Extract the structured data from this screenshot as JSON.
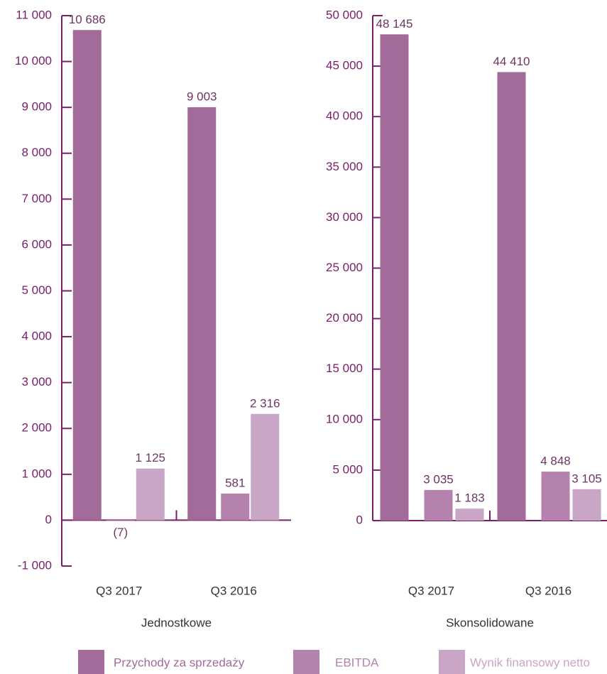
{
  "chart_data": [
    {
      "type": "bar",
      "title": "Jednostkowe",
      "categories": [
        "Q3 2017",
        "Q3 2016"
      ],
      "series": [
        {
          "name": "Przychody za sprzedaży",
          "color": "#a26b9a",
          "values": [
            10686,
            9003
          ],
          "value_labels": [
            "10 686",
            "9 003"
          ]
        },
        {
          "name": "EBITDA",
          "color": "#b482ad",
          "values": [
            -7,
            581
          ],
          "value_labels": [
            "(7)",
            "581"
          ]
        },
        {
          "name": "Wynik finansowy netto",
          "color": "#c9a5c6",
          "values": [
            1125,
            2316
          ],
          "value_labels": [
            "1 125",
            "2 316"
          ]
        }
      ],
      "ylim": [
        -1000,
        11000
      ],
      "yticks": [
        {
          "value": -1000,
          "label": "-1 000"
        },
        0,
        {
          "value": 1000,
          "label": "1 000"
        },
        {
          "value": 2000,
          "label": "2 000"
        },
        {
          "value": 3000,
          "label": "3 000"
        },
        {
          "value": 4000,
          "label": "4 000"
        },
        {
          "value": 5000,
          "label": "5 000"
        },
        {
          "value": 6000,
          "label": "6 000"
        },
        {
          "value": 7000,
          "label": "7 000"
        },
        {
          "value": 8000,
          "label": "8 000"
        },
        {
          "value": 9000,
          "label": "9 000"
        },
        {
          "value": 10000,
          "label": "10 000"
        },
        {
          "value": 11000,
          "label": "11 000"
        }
      ],
      "legend": "bottom"
    },
    {
      "type": "bar",
      "title": "Skonsolidowane",
      "categories": [
        "Q3 2017",
        "Q3 2016"
      ],
      "series": [
        {
          "name": "Przychody za sprzedaży",
          "color": "#a26b9a",
          "values": [
            48145,
            44410
          ],
          "value_labels": [
            "48 145",
            "44 410"
          ]
        },
        {
          "name": "EBITDA",
          "color": "#b482ad",
          "values": [
            3035,
            4848
          ],
          "value_labels": [
            "3 035",
            "4 848"
          ]
        },
        {
          "name": "Wynik finansowy netto",
          "color": "#c9a5c6",
          "values": [
            1183,
            3105
          ],
          "value_labels": [
            "1 183",
            "3 105"
          ]
        }
      ],
      "ylim": [
        0,
        50000
      ],
      "yticks": [
        0,
        {
          "value": 5000,
          "label": "5 000"
        },
        {
          "value": 10000,
          "label": "10 000"
        },
        {
          "value": 15000,
          "label": "15 000"
        },
        {
          "value": 20000,
          "label": "20 000"
        },
        {
          "value": 25000,
          "label": "25 000"
        },
        {
          "value": 30000,
          "label": "30 000"
        },
        {
          "value": 35000,
          "label": "35 000"
        },
        {
          "value": 40000,
          "label": "40 000"
        },
        {
          "value": 45000,
          "label": "45 000"
        },
        {
          "value": 50000,
          "label": "50 000"
        }
      ],
      "legend": "bottom"
    }
  ]
}
